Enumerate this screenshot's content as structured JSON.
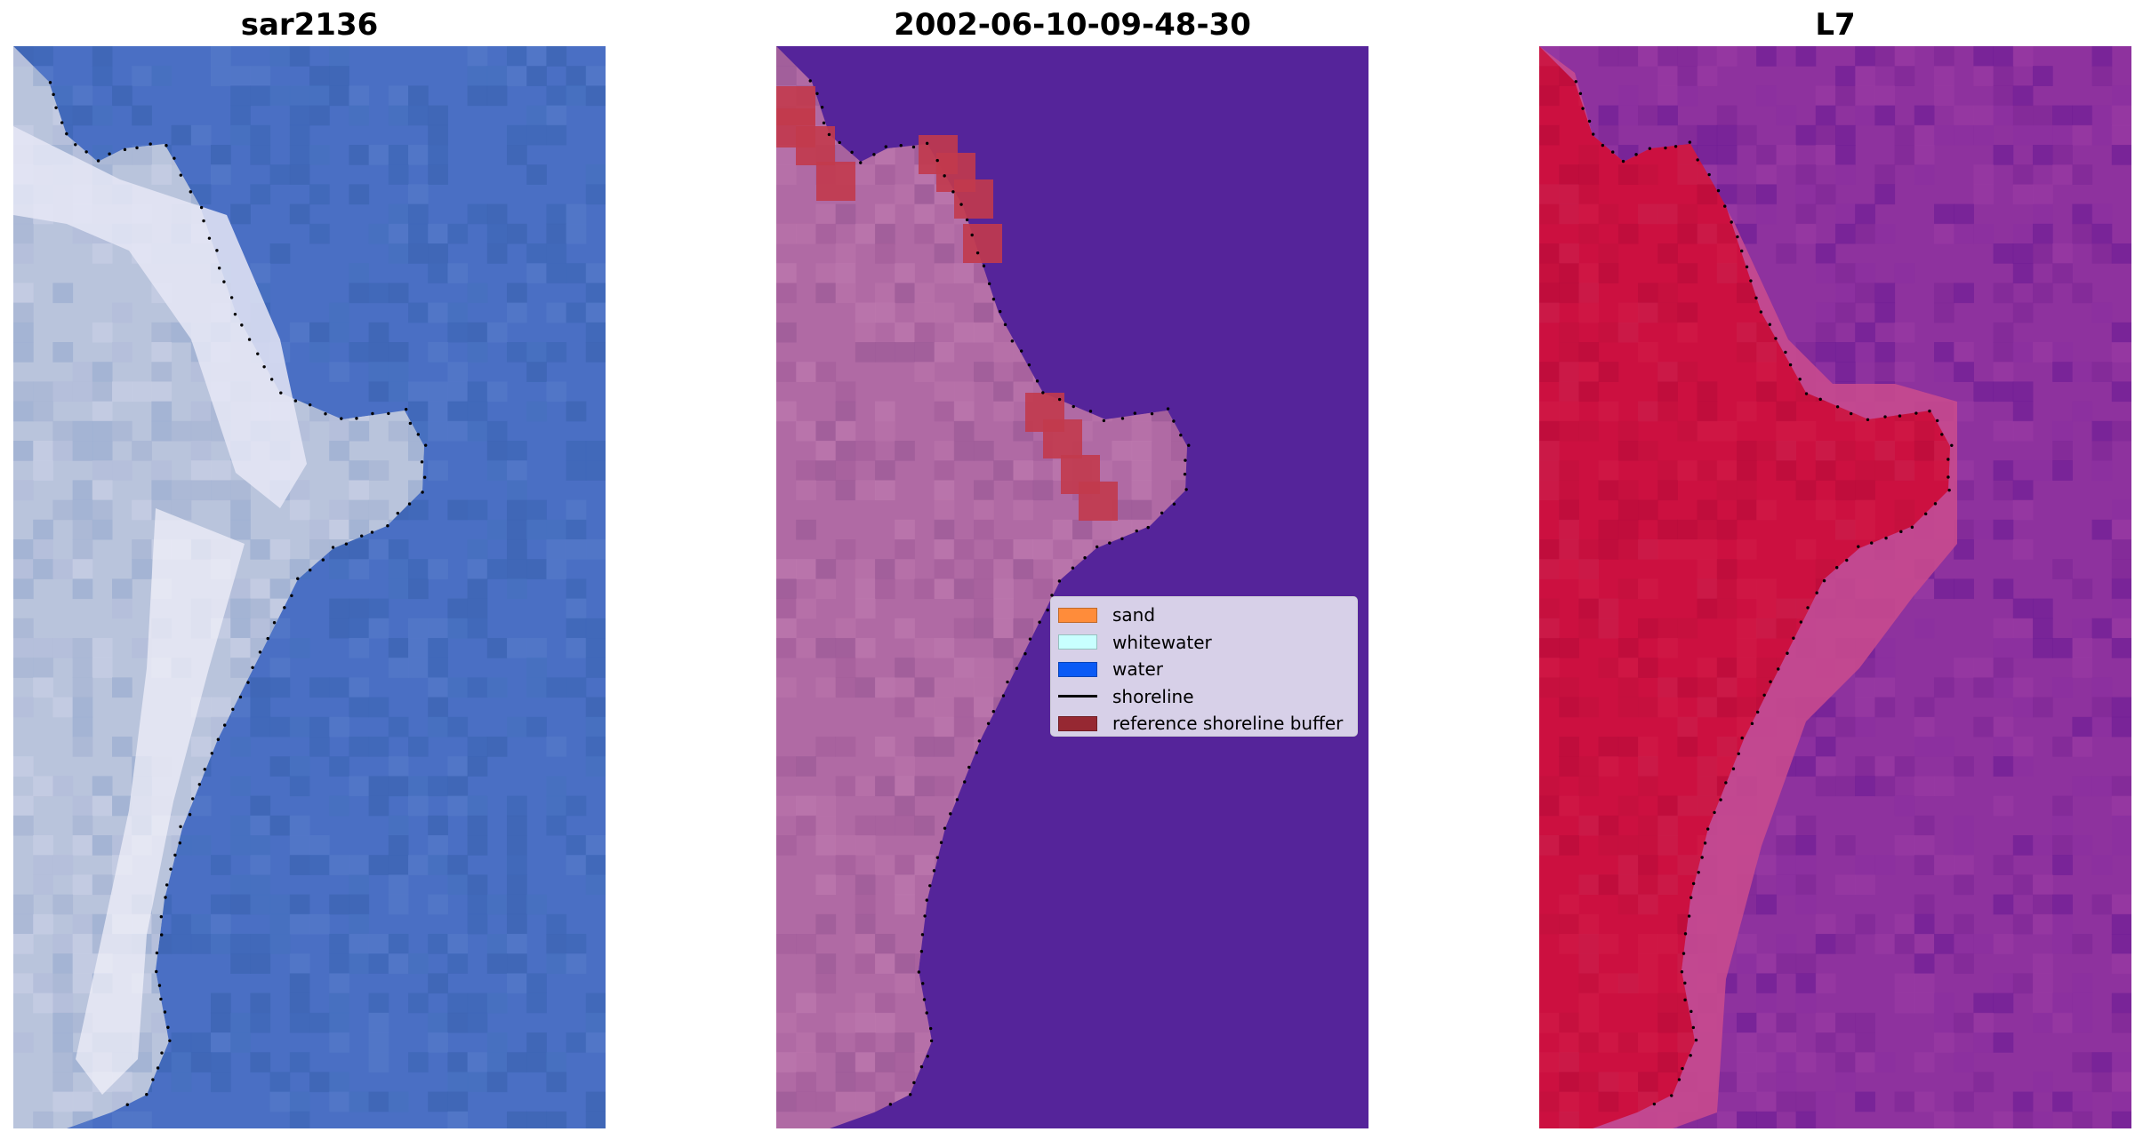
{
  "figure": {
    "panels": [
      {
        "title": "sar2136",
        "kind": "rgb-image",
        "palette": {
          "water": "#4a6fc4",
          "deep_water": "#3f68b8",
          "sand": "#b9c4dc",
          "bright_sand": "#e6e8f6",
          "whitewater": "#f4f2fb"
        }
      },
      {
        "title": "2002-06-10-09-48-30",
        "kind": "classification-overlay",
        "palette": {
          "water": "#55249a",
          "land": "#b06aa4",
          "buffer": "#c23a4c"
        }
      },
      {
        "title": "L7",
        "kind": "index-map",
        "palette": {
          "water": "#8e329e",
          "land": "#cc1040",
          "transition": "#c84a8e"
        }
      }
    ],
    "shoreline_color": "#000000",
    "legend": {
      "entries": [
        {
          "label": "sand",
          "color": "#ff8c3a",
          "kind": "patch"
        },
        {
          "label": "whitewater",
          "color": "#c8ffff",
          "kind": "patch"
        },
        {
          "label": "water",
          "color": "#0a5af5",
          "kind": "patch"
        },
        {
          "label": "shoreline",
          "color": "#000000",
          "kind": "line"
        },
        {
          "label": "reference shoreline buffer",
          "color": "#962832",
          "kind": "patch"
        }
      ]
    }
  }
}
